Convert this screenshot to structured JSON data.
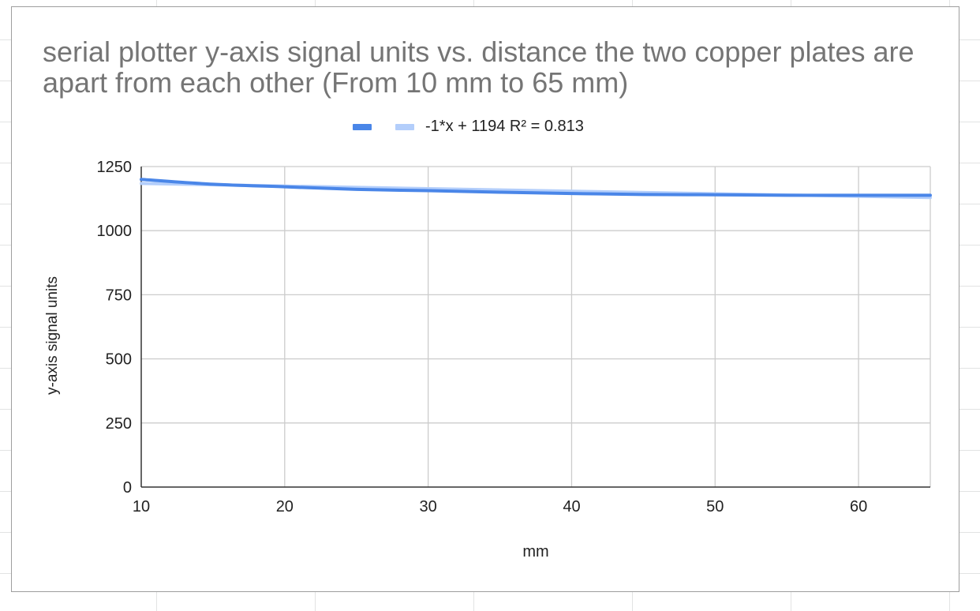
{
  "chart_data": {
    "type": "line",
    "title": "serial plotter y-axis signal units vs. distance the two copper plates are apart from each other (From 10 mm to 65 mm)",
    "xlabel": "mm",
    "ylabel": "y-axis signal units",
    "xlim": [
      10,
      65
    ],
    "ylim": [
      0,
      1250
    ],
    "x_ticks": [
      10,
      20,
      30,
      40,
      50,
      60
    ],
    "y_ticks": [
      0,
      250,
      500,
      750,
      1000,
      1250
    ],
    "grid": true,
    "legend_position": "top",
    "series": [
      {
        "x": [
          10,
          15,
          20,
          25,
          30,
          35,
          40,
          45,
          50,
          55,
          60,
          65
        ],
        "values": [
          1200,
          1181,
          1171,
          1161,
          1156,
          1150,
          1145,
          1141,
          1140,
          1138,
          1138,
          1138
        ],
        "color": "#4a86e8"
      },
      {
        "name": "-1*x + 1194 R² = 0.813",
        "kind": "trendline",
        "x": [
          10,
          65
        ],
        "values": [
          1184,
          1129
        ],
        "color": "#b3cefb"
      }
    ]
  }
}
